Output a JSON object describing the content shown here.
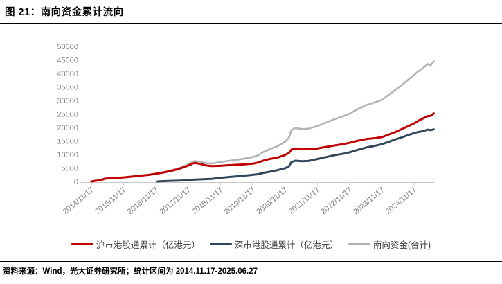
{
  "title": "图 21：南向资金累计流向",
  "footer": {
    "text": "资料来源：Wind，光大证券研究所；统计区间为 2014.11.17-2025.06.27"
  },
  "legend": [
    {
      "label": "沪市港股通累计（亿港元）",
      "color": "#c00000"
    },
    {
      "label": "深市港股通累计（亿港元）",
      "color": "#33475c"
    },
    {
      "label": "南向资金(合计)",
      "color": "#b3b3b3"
    }
  ],
  "chart_data": {
    "type": "line",
    "title": "南向资金累计流向",
    "xlabel": "",
    "ylabel": "",
    "ylim": [
      0,
      50000
    ],
    "y_tick_step": 5000,
    "y_tick_labels": [
      "0",
      "5000",
      "10000",
      "15000",
      "20000",
      "25000",
      "30000",
      "35000",
      "40000",
      "45000",
      "50000"
    ],
    "x_tick_labels": [
      "2014/11/17",
      "2015/11/17",
      "2016/11/17",
      "2017/11/17",
      "2018/11/17",
      "2019/11/17",
      "2020/11/17",
      "2021/11/17",
      "2022/11/17",
      "2023/11/17",
      "2024/11/17"
    ],
    "x_tick_start_year": 2014.88,
    "x_tick_interval_years": 1,
    "x_data_end_year": 2025.49,
    "grid": false,
    "legend_position": "bottom",
    "axis_color": "#c9c9c9",
    "label_color": "#808080",
    "series": [
      {
        "name": "沪市港股通累计（亿港元）",
        "color": "#c00000",
        "width": 3,
        "points": [
          [
            2014.88,
            0
          ],
          [
            2015.0,
            250
          ],
          [
            2015.15,
            420
          ],
          [
            2015.3,
            1050
          ],
          [
            2015.5,
            1230
          ],
          [
            2015.7,
            1350
          ],
          [
            2015.88,
            1500
          ],
          [
            2016.1,
            1760
          ],
          [
            2016.4,
            2150
          ],
          [
            2016.65,
            2430
          ],
          [
            2016.88,
            2850
          ],
          [
            2017.1,
            3300
          ],
          [
            2017.35,
            3900
          ],
          [
            2017.6,
            4700
          ],
          [
            2017.88,
            5900
          ],
          [
            2018.0,
            6550
          ],
          [
            2018.08,
            6900
          ],
          [
            2018.25,
            6500
          ],
          [
            2018.45,
            5900
          ],
          [
            2018.6,
            5700
          ],
          [
            2018.88,
            5800
          ],
          [
            2019.1,
            6000
          ],
          [
            2019.35,
            6150
          ],
          [
            2019.6,
            6300
          ],
          [
            2019.88,
            6600
          ],
          [
            2020.05,
            7000
          ],
          [
            2020.2,
            7700
          ],
          [
            2020.4,
            8300
          ],
          [
            2020.65,
            8900
          ],
          [
            2020.88,
            9800
          ],
          [
            2021.0,
            10600
          ],
          [
            2021.08,
            11800
          ],
          [
            2021.2,
            12100
          ],
          [
            2021.4,
            11900
          ],
          [
            2021.6,
            11950
          ],
          [
            2021.88,
            12200
          ],
          [
            2022.1,
            12700
          ],
          [
            2022.4,
            13300
          ],
          [
            2022.7,
            13900
          ],
          [
            2022.88,
            14300
          ],
          [
            2023.1,
            15000
          ],
          [
            2023.4,
            15700
          ],
          [
            2023.7,
            16100
          ],
          [
            2023.88,
            16400
          ],
          [
            2024.1,
            17400
          ],
          [
            2024.3,
            18300
          ],
          [
            2024.5,
            19400
          ],
          [
            2024.7,
            20500
          ],
          [
            2024.88,
            21500
          ],
          [
            2025.0,
            22400
          ],
          [
            2025.15,
            23300
          ],
          [
            2025.3,
            24200
          ],
          [
            2025.4,
            24300
          ],
          [
            2025.49,
            25200
          ]
        ]
      },
      {
        "name": "深市港股通累计（亿港元）",
        "color": "#33475c",
        "width": 3,
        "points": [
          [
            2016.93,
            0
          ],
          [
            2017.1,
            130
          ],
          [
            2017.35,
            230
          ],
          [
            2017.6,
            330
          ],
          [
            2017.88,
            450
          ],
          [
            2018.0,
            600
          ],
          [
            2018.08,
            700
          ],
          [
            2018.3,
            800
          ],
          [
            2018.6,
            950
          ],
          [
            2018.88,
            1370
          ],
          [
            2019.1,
            1600
          ],
          [
            2019.35,
            1850
          ],
          [
            2019.6,
            2100
          ],
          [
            2019.88,
            2450
          ],
          [
            2020.05,
            2700
          ],
          [
            2020.2,
            3150
          ],
          [
            2020.4,
            3600
          ],
          [
            2020.65,
            4200
          ],
          [
            2020.88,
            4900
          ],
          [
            2021.0,
            5600
          ],
          [
            2021.08,
            7200
          ],
          [
            2021.2,
            7700
          ],
          [
            2021.4,
            7500
          ],
          [
            2021.6,
            7600
          ],
          [
            2021.88,
            8300
          ],
          [
            2022.1,
            8900
          ],
          [
            2022.4,
            9700
          ],
          [
            2022.7,
            10300
          ],
          [
            2022.88,
            10800
          ],
          [
            2023.1,
            11600
          ],
          [
            2023.4,
            12600
          ],
          [
            2023.7,
            13300
          ],
          [
            2023.88,
            13800
          ],
          [
            2024.1,
            14700
          ],
          [
            2024.3,
            15600
          ],
          [
            2024.5,
            16300
          ],
          [
            2024.7,
            17200
          ],
          [
            2024.88,
            17900
          ],
          [
            2025.0,
            18300
          ],
          [
            2025.15,
            18600
          ],
          [
            2025.3,
            19200
          ],
          [
            2025.4,
            19000
          ],
          [
            2025.49,
            19300
          ]
        ]
      },
      {
        "name": "南向资金(合计)",
        "color": "#b3b3b3",
        "width": 2.6,
        "points": [
          [
            2014.88,
            0
          ],
          [
            2015.0,
            250
          ],
          [
            2015.15,
            420
          ],
          [
            2015.3,
            1050
          ],
          [
            2015.5,
            1230
          ],
          [
            2015.7,
            1350
          ],
          [
            2015.88,
            1500
          ],
          [
            2016.1,
            1760
          ],
          [
            2016.4,
            2150
          ],
          [
            2016.65,
            2430
          ],
          [
            2016.88,
            2850
          ],
          [
            2017.1,
            3430
          ],
          [
            2017.35,
            4130
          ],
          [
            2017.6,
            5030
          ],
          [
            2017.88,
            6350
          ],
          [
            2018.0,
            7150
          ],
          [
            2018.08,
            7600
          ],
          [
            2018.25,
            7310
          ],
          [
            2018.45,
            6780
          ],
          [
            2018.6,
            6650
          ],
          [
            2018.88,
            7170
          ],
          [
            2019.1,
            7600
          ],
          [
            2019.35,
            8000
          ],
          [
            2019.6,
            8400
          ],
          [
            2019.88,
            9050
          ],
          [
            2020.05,
            9700
          ],
          [
            2020.2,
            10850
          ],
          [
            2020.4,
            11900
          ],
          [
            2020.65,
            13100
          ],
          [
            2020.88,
            14700
          ],
          [
            2021.0,
            16200
          ],
          [
            2021.08,
            19000
          ],
          [
            2021.2,
            19800
          ],
          [
            2021.4,
            19400
          ],
          [
            2021.6,
            19550
          ],
          [
            2021.88,
            20500
          ],
          [
            2022.1,
            21600
          ],
          [
            2022.4,
            23000
          ],
          [
            2022.7,
            24200
          ],
          [
            2022.88,
            25100
          ],
          [
            2023.1,
            26600
          ],
          [
            2023.4,
            28300
          ],
          [
            2023.7,
            29400
          ],
          [
            2023.88,
            30200
          ],
          [
            2024.1,
            32100
          ],
          [
            2024.3,
            33900
          ],
          [
            2024.5,
            35700
          ],
          [
            2024.7,
            37700
          ],
          [
            2024.88,
            39400
          ],
          [
            2025.0,
            40700
          ],
          [
            2025.15,
            41900
          ],
          [
            2025.25,
            42900
          ],
          [
            2025.32,
            43500
          ],
          [
            2025.38,
            42800
          ],
          [
            2025.49,
            44500
          ]
        ]
      }
    ]
  }
}
